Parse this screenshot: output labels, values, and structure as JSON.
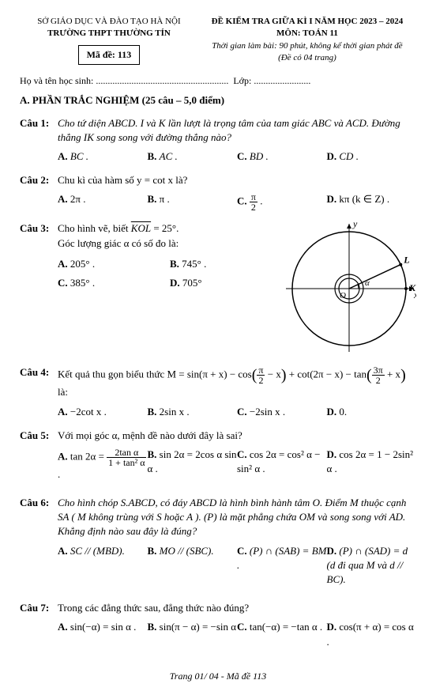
{
  "header": {
    "left1": "SỞ GIÁO DỤC VÀ ĐÀO TẠO HÀ NỘI",
    "left2": "TRƯỜNG THPT THƯỜNG TÍN",
    "made_label": "Mã đề: 113",
    "right1": "ĐỀ KIỂM TRA GIỮA KÌ I NĂM HỌC 2023 – 2024",
    "right2": "MÔN: TOÁN 11",
    "right3": "Thời gian làm bài: 90 phút, không kể thời gian phát đề",
    "right4": "(Đề có 04 trang)"
  },
  "student": {
    "name_label": "Họ và tên học sinh:",
    "dots1": "........................................................",
    "class_label": "Lớp:",
    "dots2": "........................"
  },
  "section_a": "A. PHẦN TRẮC NGHIỆM (25 câu – 5,0 điểm)",
  "q1": {
    "label": "Câu 1:",
    "text": "Cho tứ diện ABCD. I và K lần lượt là trọng tâm của tam giác ABC và ACD. Đường thẳng IK song song với đường thẳng nào?",
    "a": "BC .",
    "b": "AC .",
    "c": "BD .",
    "d": "CD ."
  },
  "q2": {
    "label": "Câu 2:",
    "text": "Chu kì của hàm số  y = cot x là?",
    "a": "2π .",
    "b": "π .",
    "c_num": "π",
    "c_den": "2",
    "c_tail": " .",
    "d": "kπ  (k ∈ Z) ."
  },
  "q3": {
    "label": "Câu 3:",
    "text1": "Cho hình vẽ, biết ",
    "kol": "KOL",
    "text2": " = 25°.",
    "text3": "Góc lượng giác α có số đo là:",
    "a": "205° .",
    "b": "745° .",
    "c": "385° .",
    "d": "705°",
    "diagram": {
      "outer_r": 72,
      "inner_r": 18,
      "arc_r": 12,
      "stroke": "#000000",
      "bg": "#ffffff",
      "axis_label_x": "x",
      "axis_label_y": "y",
      "label_K": "K",
      "label_L": "L",
      "label_O": "O",
      "label_a": "α"
    }
  },
  "q4": {
    "label": "Câu 4:",
    "lead": "Kết quả thu gọn biểu thức  M = sin(π + x) − cos",
    "p1_num": "π",
    "p1_den": "2",
    "p1_tail": " − x",
    "mid1": " + cot(2π − x) − tan",
    "p2_num": "3π",
    "p2_den": "2",
    "p2_tail": " + x",
    "tail": " là:",
    "a": "−2cot x .",
    "b": "2sin x .",
    "c": "−2sin x .",
    "d": "0."
  },
  "q5": {
    "label": "Câu 5:",
    "text": "Với mọi góc α, mệnh đề nào dưới đây là sai?",
    "a_lead": "tan 2α = ",
    "a_num": "2tan α",
    "a_den": "1 + tan² α",
    "a_tail": " .",
    "b": "sin 2α = 2cos α sin α .",
    "c": "cos 2α = cos² α − sin² α .",
    "d": "cos 2α = 1 − 2sin² α ."
  },
  "q6": {
    "label": "Câu 6:",
    "text": "Cho hình chóp S.ABCD, có đáy ABCD là hình bình hành tâm O. Điểm M thuộc cạnh SA ( M không trùng với S hoặc A ). (P) là mặt phẳng chứa OM và song song với AD. Khẳng định nào sau đây là đúng?",
    "a": "SC // (MBD).",
    "b": "MO // (SBC).",
    "c": "(P) ∩ (SAB) = BM .",
    "d": "(P) ∩ (SAD) = d  (d đi qua M và d // BC)."
  },
  "q7": {
    "label": "Câu 7:",
    "text": "Trong các đẳng thức sau, đẳng thức nào đúng?",
    "a": "sin(−α) = sin α .",
    "b": "sin(π − α) = −sin α",
    "c": "tan(−α) = −tan α .",
    "d": "cos(π + α) = cos α ."
  },
  "footer": "Trang 01/ 04 - Mã đề 113",
  "letters": {
    "A": "A.",
    "B": "B.",
    "C": "C.",
    "D": "D."
  }
}
